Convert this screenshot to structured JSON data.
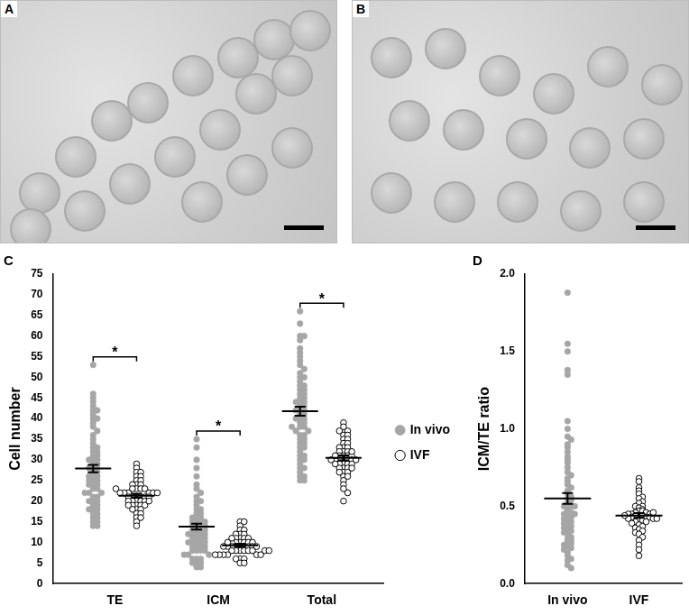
{
  "panels": [
    {
      "label": "A"
    },
    {
      "label": "B"
    }
  ],
  "chart_data": [
    {
      "panel": "C",
      "type": "strip",
      "categories": [
        "TE",
        "ICM",
        "Total"
      ],
      "ylabel": "Cell number",
      "ylim": [
        0,
        75
      ],
      "yticks": [
        0,
        5,
        10,
        15,
        20,
        25,
        30,
        35,
        40,
        45,
        50,
        55,
        60,
        65,
        70,
        75
      ],
      "grid": false,
      "legend": "right",
      "series": [
        {
          "name": "In vivo",
          "color": "#a6a6a6",
          "marker": "circle",
          "values": [
            [
              53,
              46,
              45,
              44,
              43,
              42,
              42,
              41,
              40,
              40,
              39,
              38,
              37,
              36,
              35,
              34,
              33,
              33,
              32,
              32,
              31,
              31,
              30,
              30,
              30,
              29,
              29,
              28,
              28,
              27,
              27,
              26,
              26,
              25,
              25,
              25,
              24,
              24,
              23,
              23,
              22,
              22,
              22,
              21,
              21,
              20,
              20,
              20,
              19,
              19,
              18,
              18,
              18,
              17,
              17,
              16,
              16,
              15,
              15,
              14,
              14,
              24,
              26,
              28
            ],
            [
              35,
              33,
              30,
              28,
              26,
              24,
              23,
              22,
              21,
              20,
              20,
              19,
              18,
              18,
              17,
              17,
              16,
              16,
              16,
              15,
              15,
              15,
              14,
              14,
              14,
              14,
              13,
              13,
              13,
              13,
              12,
              12,
              12,
              12,
              11,
              11,
              11,
              11,
              10,
              10,
              10,
              10,
              9,
              9,
              9,
              9,
              8,
              8,
              8,
              8,
              7,
              7,
              7,
              6,
              6,
              6,
              5,
              5,
              5,
              4,
              4,
              15,
              12,
              10
            ],
            [
              66,
              63,
              60,
              60,
              59,
              57,
              56,
              55,
              54,
              53,
              52,
              51,
              50,
              50,
              49,
              48,
              48,
              47,
              47,
              46,
              46,
              45,
              45,
              44,
              44,
              43,
              43,
              42,
              42,
              41,
              41,
              40,
              40,
              39,
              39,
              38,
              38,
              37,
              37,
              36,
              36,
              35,
              35,
              34,
              34,
              33,
              33,
              32,
              31,
              31,
              30,
              30,
              29,
              28,
              28,
              27,
              26,
              26,
              25,
              25,
              42,
              44,
              40,
              38
            ]
          ],
          "mean": [
            27.9,
            13.8,
            41.8
          ],
          "sem": [
            0.9,
            0.7,
            1.1
          ]
        },
        {
          "name": "IVF",
          "color": "#000000",
          "marker": "open_circle",
          "values": [
            [
              29,
              28,
              27,
              27,
              26,
              26,
              25,
              25,
              24,
              24,
              24,
              23,
              23,
              23,
              23,
              22,
              22,
              22,
              22,
              22,
              21,
              21,
              21,
              21,
              21,
              20,
              20,
              20,
              20,
              20,
              19,
              19,
              19,
              19,
              18,
              18,
              18,
              17,
              17,
              16,
              16,
              15,
              14,
              22,
              21,
              20,
              19,
              23
            ],
            [
              15,
              15,
              14,
              13,
              13,
              12,
              12,
              12,
              11,
              11,
              11,
              11,
              10,
              10,
              10,
              10,
              10,
              10,
              9,
              9,
              9,
              9,
              9,
              9,
              9,
              8,
              8,
              8,
              8,
              8,
              8,
              7,
              7,
              7,
              7,
              7,
              6,
              6,
              6,
              5,
              5,
              9,
              10,
              8,
              9,
              11,
              7,
              8
            ],
            [
              39,
              38,
              37,
              37,
              36,
              36,
              35,
              35,
              34,
              34,
              33,
              33,
              33,
              32,
              32,
              32,
              31,
              31,
              31,
              31,
              30,
              30,
              30,
              30,
              30,
              29,
              29,
              29,
              29,
              28,
              28,
              28,
              27,
              27,
              26,
              26,
              25,
              24,
              23,
              22,
              20,
              30,
              31,
              29,
              28,
              32,
              27,
              30
            ]
          ],
          "mean": [
            21.3,
            9.3,
            30.5
          ],
          "sem": [
            0.5,
            0.35,
            0.6
          ]
        }
      ],
      "annotations": [
        {
          "category": "TE",
          "text": "*"
        },
        {
          "category": "ICM",
          "text": "*"
        },
        {
          "category": "Total",
          "text": "*"
        }
      ]
    },
    {
      "panel": "D",
      "type": "strip",
      "categories": [
        "In vivo",
        "IVF"
      ],
      "ylabel": "ICM/TE ratio",
      "ylim": [
        0,
        2
      ],
      "yticks": [
        {
          "value": 0,
          "label": "0.0"
        },
        0.5,
        {
          "value": 1,
          "label": "1.0"
        },
        1.5,
        {
          "value": 2,
          "label": "2.0"
        }
      ],
      "grid": false,
      "series": [
        {
          "name": "In vivo",
          "color": "#a6a6a6",
          "marker": "circle",
          "values": [
            [
              1.88,
              1.55,
              1.5,
              1.38,
              1.35,
              1.05,
              1.0,
              0.95,
              0.93,
              0.9,
              0.88,
              0.85,
              0.82,
              0.8,
              0.78,
              0.75,
              0.72,
              0.7,
              0.68,
              0.66,
              0.64,
              0.62,
              0.6,
              0.58,
              0.56,
              0.55,
              0.54,
              0.52,
              0.5,
              0.5,
              0.48,
              0.47,
              0.46,
              0.45,
              0.44,
              0.43,
              0.42,
              0.41,
              0.4,
              0.39,
              0.38,
              0.37,
              0.36,
              0.35,
              0.34,
              0.33,
              0.32,
              0.3,
              0.29,
              0.28,
              0.27,
              0.26,
              0.25,
              0.24,
              0.23,
              0.22,
              0.2,
              0.18,
              0.16,
              0.15,
              0.12,
              0.1,
              0.45,
              0.5
            ],
            null
          ],
          "mean": [
            0.55,
            null
          ],
          "sem": [
            0.035,
            null
          ]
        },
        {
          "name": "IVF",
          "color": "#000000",
          "marker": "open_circle",
          "values": [
            null,
            [
              0.68,
              0.66,
              0.62,
              0.6,
              0.58,
              0.56,
              0.55,
              0.53,
              0.52,
              0.5,
              0.5,
              0.49,
              0.48,
              0.47,
              0.47,
              0.46,
              0.46,
              0.45,
              0.45,
              0.45,
              0.44,
              0.44,
              0.44,
              0.43,
              0.43,
              0.43,
              0.42,
              0.42,
              0.41,
              0.41,
              0.4,
              0.4,
              0.39,
              0.38,
              0.37,
              0.36,
              0.35,
              0.34,
              0.33,
              0.32,
              0.3,
              0.28,
              0.25,
              0.22,
              0.18,
              0.44,
              0.42,
              0.46
            ]
          ],
          "mean": [
            null,
            0.44
          ],
          "sem": [
            null,
            0.015
          ]
        }
      ]
    }
  ]
}
